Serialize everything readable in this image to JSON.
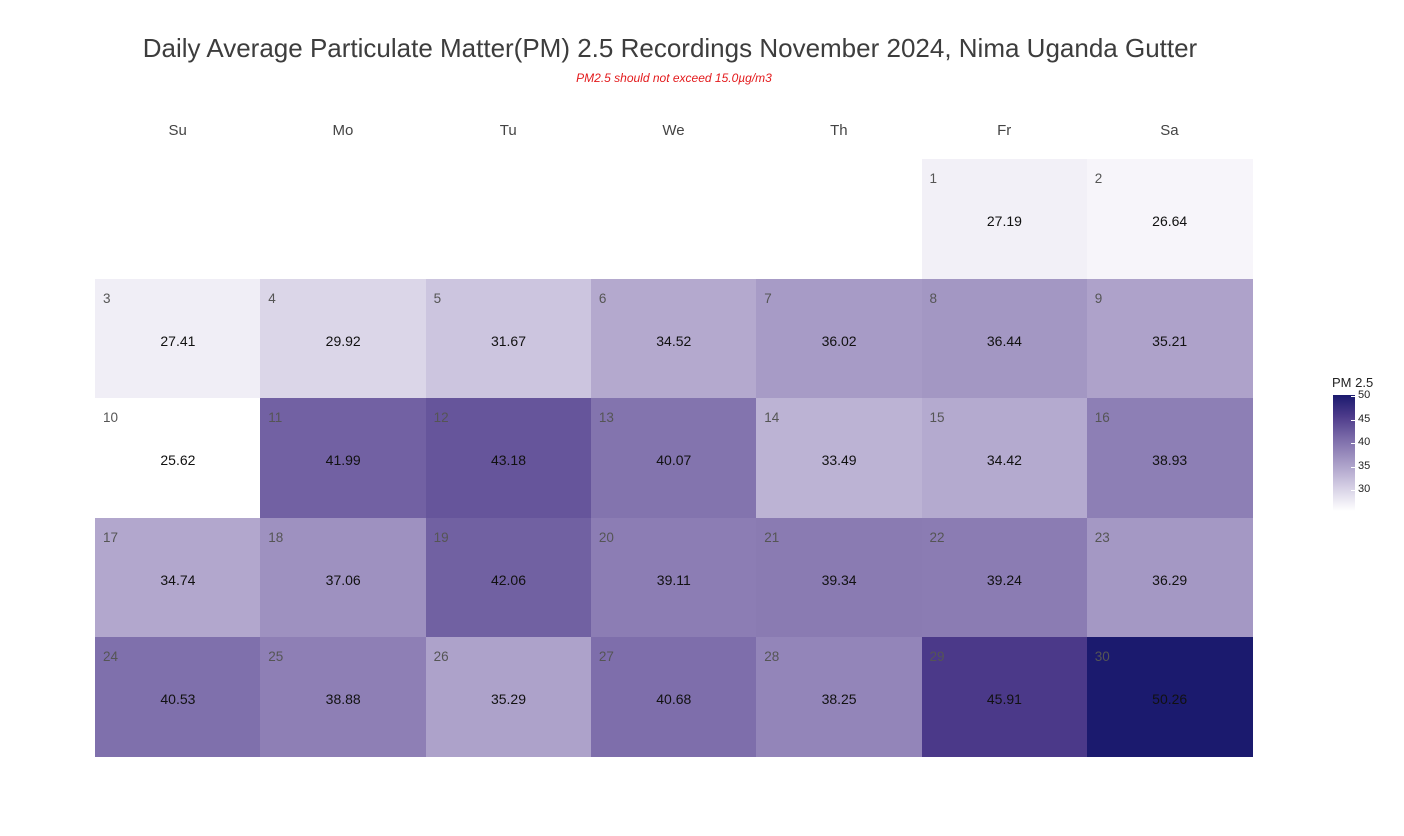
{
  "chart_data": {
    "type": "heatmap",
    "title": "Daily Average Particulate Matter(PM) 2.5 Recordings November 2024,  Nima Uganda Gutter",
    "subtitle": "PM2.5 should not exceed 15.0µg/m3",
    "weekdays": [
      "Su",
      "Mo",
      "Tu",
      "We",
      "Th",
      "Fr",
      "Sa"
    ],
    "first_weekday_index": 5,
    "days": [
      1,
      2,
      3,
      4,
      5,
      6,
      7,
      8,
      9,
      10,
      11,
      12,
      13,
      14,
      15,
      16,
      17,
      18,
      19,
      20,
      21,
      22,
      23,
      24,
      25,
      26,
      27,
      28,
      29,
      30
    ],
    "values": [
      27.19,
      26.64,
      27.41,
      29.92,
      31.67,
      34.52,
      36.02,
      36.44,
      35.21,
      25.62,
      41.99,
      43.18,
      40.07,
      33.49,
      34.42,
      38.93,
      34.74,
      37.06,
      42.06,
      39.11,
      39.34,
      39.24,
      36.29,
      40.53,
      38.88,
      35.29,
      40.68,
      38.25,
      45.91,
      50.26
    ],
    "value_labels": [
      "27.19",
      "26.64",
      "27.41",
      "29.92",
      "31.67",
      "34.52",
      "36.02",
      "36.44",
      "35.21",
      "25.62",
      "41.99",
      "43.18",
      "40.07",
      "33.49",
      "34.42",
      "38.93",
      "34.74",
      "37.06",
      "42.06",
      "39.11",
      "39.34",
      "39.24",
      "36.29",
      "40.53",
      "38.88",
      "35.29",
      "40.68",
      "38.25",
      "45.91",
      "50.26"
    ],
    "legend": {
      "title": "PM 2.5",
      "ticks": [
        30,
        35,
        40,
        45,
        50
      ],
      "range": [
        25.62,
        50.26
      ],
      "color_low": "#ffffff",
      "color_high": "#1b1a6e",
      "position": "right"
    }
  }
}
